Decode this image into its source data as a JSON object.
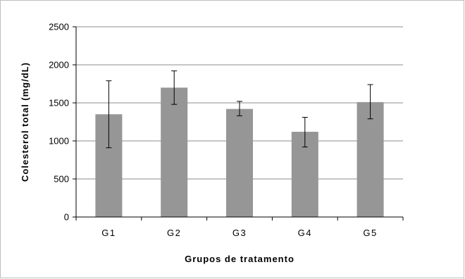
{
  "chart_data": {
    "type": "bar",
    "categories": [
      "G1",
      "G2",
      "G3",
      "G4",
      "G5"
    ],
    "values": [
      1350,
      1700,
      1420,
      1120,
      1510
    ],
    "error_low": [
      910,
      1480,
      1330,
      920,
      1290
    ],
    "error_high": [
      1790,
      1920,
      1520,
      1310,
      1740
    ],
    "xlabel": "Grupos de tratamento",
    "ylabel": "Colesterol total (mg/dL)",
    "ylim": [
      0,
      2500
    ],
    "yticks": [
      0,
      500,
      1000,
      1500,
      2000,
      2500
    ],
    "ytick_labels": [
      "0",
      "500",
      "1000",
      "1500",
      "2000",
      "2500"
    ],
    "grid": "horizontal",
    "bar_color": "#969696",
    "gridline_color": "#8c8c8c",
    "legend": "none"
  }
}
